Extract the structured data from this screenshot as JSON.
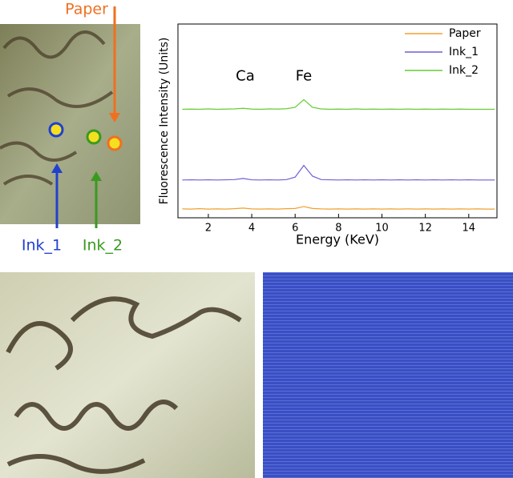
{
  "chart_data": {
    "type": "line",
    "xlabel": "Energy (KeV)",
    "ylabel": "Fluorescence Intensity (Units)",
    "x": [
      0.8,
      1.2,
      1.6,
      2.0,
      2.4,
      2.8,
      3.2,
      3.6,
      4.0,
      4.4,
      4.8,
      5.2,
      5.6,
      6.0,
      6.4,
      6.8,
      7.2,
      7.6,
      8.0,
      8.4,
      8.8,
      9.2,
      9.6,
      10.0,
      10.4,
      10.8,
      11.2,
      11.6,
      12.0,
      12.4,
      12.8,
      13.2,
      13.6,
      14.0,
      14.4,
      14.8,
      15.2
    ],
    "series": [
      {
        "name": "Paper",
        "color": "#f0a030",
        "values": [
          0.46,
          0.45,
          0.47,
          0.45,
          0.46,
          0.45,
          0.47,
          0.5,
          0.46,
          0.45,
          0.46,
          0.45,
          0.47,
          0.48,
          0.58,
          0.48,
          0.46,
          0.45,
          0.46,
          0.45,
          0.46,
          0.45,
          0.46,
          0.45,
          0.46,
          0.45,
          0.46,
          0.45,
          0.46,
          0.45,
          0.46,
          0.45,
          0.46,
          0.45,
          0.46,
          0.45,
          0.45
        ]
      },
      {
        "name": "Ink_1",
        "color": "#6f5fd6",
        "values": [
          1.95,
          1.96,
          1.95,
          1.96,
          1.95,
          1.96,
          1.97,
          2.03,
          1.96,
          1.95,
          1.96,
          1.95,
          1.97,
          2.1,
          2.7,
          2.15,
          1.97,
          1.96,
          1.95,
          1.96,
          1.95,
          1.96,
          1.95,
          1.96,
          1.95,
          1.96,
          1.95,
          1.96,
          1.95,
          1.96,
          1.95,
          1.96,
          1.95,
          1.96,
          1.95,
          1.95,
          1.95
        ]
      },
      {
        "name": "Ink_2",
        "color": "#66cc33",
        "values": [
          5.6,
          5.61,
          5.6,
          5.62,
          5.6,
          5.61,
          5.62,
          5.65,
          5.61,
          5.6,
          5.62,
          5.61,
          5.63,
          5.7,
          6.1,
          5.7,
          5.62,
          5.6,
          5.61,
          5.6,
          5.62,
          5.6,
          5.61,
          5.6,
          5.61,
          5.6,
          5.61,
          5.6,
          5.61,
          5.6,
          5.61,
          5.6,
          5.61,
          5.6,
          5.6,
          5.6,
          5.6
        ]
      }
    ],
    "xlim": [
      0.6,
      15.3
    ],
    "xticks": [
      2,
      4,
      6,
      8,
      10,
      12,
      14
    ],
    "ylim": [
      0,
      10
    ],
    "legend": "upper right",
    "annotations": [
      {
        "text": "Ca",
        "x": 3.7,
        "y": 7.3
      },
      {
        "text": "Fe",
        "x": 6.4,
        "y": 7.3
      }
    ]
  },
  "photo_labels": {
    "paper": "Paper",
    "ink_1": "Ink_1",
    "ink_2": "Ink_2"
  }
}
